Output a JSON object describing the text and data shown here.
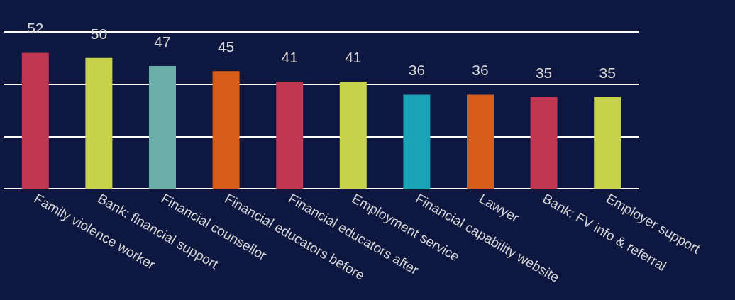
{
  "chart_data": {
    "type": "bar",
    "categories": [
      "Family violence worker",
      "Bank: financial support",
      "Financial counsellor",
      "Financial educators before",
      "Financial educators after",
      "Employment service",
      "Financial capability website",
      "Lawyer",
      "Bank: FV info & referral",
      "Employer support"
    ],
    "values": [
      52,
      50,
      47,
      45,
      41,
      41,
      36,
      36,
      35,
      35
    ],
    "colors": [
      "#c0354f",
      "#c8d14a",
      "#6aafa8",
      "#d65c1a",
      "#c0354f",
      "#c8d14a",
      "#1aa3b8",
      "#d65c1a",
      "#c0354f",
      "#c8d14a"
    ],
    "ylim": [
      0,
      60
    ],
    "yticks": [
      {
        "value": 0,
        "label": null
      },
      {
        "value": 20,
        "label": null
      },
      {
        "value": 40,
        "label": null
      },
      {
        "value": 60,
        "label": null
      }
    ],
    "tick_labels": "x",
    "grid": "y",
    "data_labels": true
  }
}
